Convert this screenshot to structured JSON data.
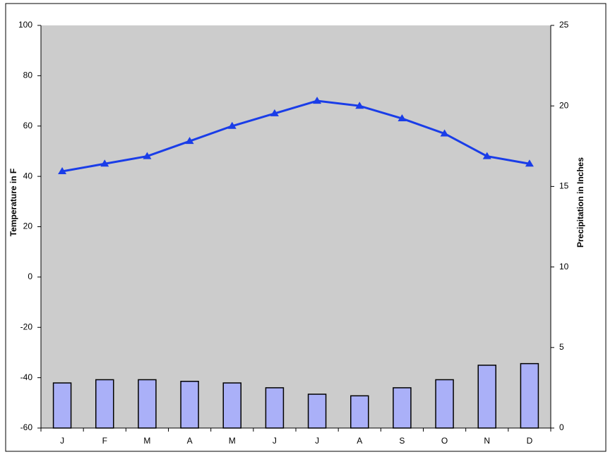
{
  "chart_data": {
    "type": "combo",
    "categories": [
      "J",
      "F",
      "M",
      "A",
      "M",
      "J",
      "J",
      "A",
      "S",
      "O",
      "N",
      "D"
    ],
    "ylabel": "Temperature in F",
    "y2label": "Precipitation in Inches",
    "ylim": [
      -60,
      100
    ],
    "yticks": [
      -60,
      -40,
      -20,
      0,
      20,
      40,
      60,
      80,
      100
    ],
    "y2lim": [
      0,
      25
    ],
    "y2ticks": [
      0,
      5,
      10,
      15,
      20,
      25
    ],
    "background": "#cccccc",
    "series": [
      {
        "type": "bar",
        "axis": "y2",
        "color": "#aab0f8",
        "values": [
          2.8,
          3.0,
          3.0,
          2.9,
          2.8,
          2.5,
          2.1,
          2.0,
          2.5,
          3.0,
          3.9,
          4.0
        ]
      },
      {
        "type": "line",
        "color": "#1a3de8",
        "values": [
          42,
          45,
          48,
          54,
          60,
          65,
          70,
          68,
          63,
          57,
          48,
          45
        ]
      }
    ]
  }
}
